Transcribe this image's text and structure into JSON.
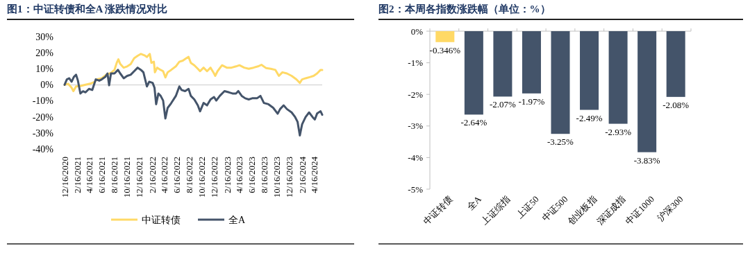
{
  "chart_data": [
    {
      "type": "line",
      "title": "图1：中证转债和全A 涨跌情况对比",
      "legend": "bottom",
      "xlim": [
        "2020-12-16",
        "2024-05-24"
      ],
      "xticks": [
        {
          "value": "2020-12-16",
          "label": "12/16/2020"
        },
        {
          "value": "2021-02-16",
          "label": "2/16/2021"
        },
        {
          "value": "2021-04-16",
          "label": "4/16/2021"
        },
        {
          "value": "2021-06-16",
          "label": "6/16/2021"
        },
        {
          "value": "2021-08-16",
          "label": "8/16/2021"
        },
        {
          "value": "2021-10-16",
          "label": "10/16/2021"
        },
        {
          "value": "2021-12-16",
          "label": "12/16/2021"
        },
        {
          "value": "2022-02-16",
          "label": "2/16/2022"
        },
        {
          "value": "2022-04-16",
          "label": "4/16/2022"
        },
        {
          "value": "2022-06-16",
          "label": "6/16/2022"
        },
        {
          "value": "2022-08-16",
          "label": "8/16/2022"
        },
        {
          "value": "2022-10-16",
          "label": "10/16/2022"
        },
        {
          "value": "2022-12-16",
          "label": "12/16/2022"
        },
        {
          "value": "2023-02-16",
          "label": "2/16/2023"
        },
        {
          "value": "2023-04-16",
          "label": "4/16/2023"
        },
        {
          "value": "2023-06-16",
          "label": "6/16/2023"
        },
        {
          "value": "2023-08-16",
          "label": "8/16/2023"
        },
        {
          "value": "2023-10-16",
          "label": "10/16/2023"
        },
        {
          "value": "2023-12-16",
          "label": "12/16/2023"
        },
        {
          "value": "2024-02-16",
          "label": "2/16/2024"
        },
        {
          "value": "2024-04-16",
          "label": "4/16/2024"
        }
      ],
      "ylim": [
        -40,
        30
      ],
      "yticks": [
        {
          "value": -40,
          "label": "-40%"
        },
        {
          "value": -30,
          "label": "-30%"
        },
        {
          "value": -20,
          "label": "-20%"
        },
        {
          "value": -10,
          "label": "-10%"
        },
        {
          "value": 0,
          "label": "0%"
        },
        {
          "value": 10,
          "label": "10%"
        },
        {
          "value": 20,
          "label": "20%"
        },
        {
          "value": 30,
          "label": "30%"
        }
      ],
      "series": [
        {
          "name": "中证转债",
          "color": "#ffd966",
          "x": [
            "2020-12-16",
            "2021-01-02",
            "2021-01-19",
            "2021-01-28",
            "2021-02-10",
            "2021-03-05",
            "2021-03-28",
            "2021-04-19",
            "2021-05-12",
            "2021-05-23",
            "2021-06-15",
            "2021-07-07",
            "2021-07-30",
            "2021-08-16",
            "2021-08-27",
            "2021-09-04",
            "2021-09-13",
            "2021-09-30",
            "2021-10-17",
            "2021-11-03",
            "2021-11-20",
            "2021-12-07",
            "2021-12-23",
            "2022-01-09",
            "2022-01-21",
            "2022-02-04",
            "2022-02-12",
            "2022-02-24",
            "2022-03-01",
            "2022-03-12",
            "2022-03-29",
            "2022-04-10",
            "2022-04-21",
            "2022-05-02",
            "2022-05-19",
            "2022-06-11",
            "2022-06-28",
            "2022-07-15",
            "2022-08-01",
            "2022-08-12",
            "2022-08-23",
            "2022-09-09",
            "2022-09-26",
            "2022-10-07",
            "2022-10-24",
            "2022-11-10",
            "2022-11-27",
            "2022-12-14",
            "2022-12-20",
            "2022-12-31",
            "2023-01-22",
            "2023-02-14",
            "2023-03-09",
            "2023-03-31",
            "2023-04-17",
            "2023-05-10",
            "2023-06-01",
            "2023-06-24",
            "2023-07-16",
            "2023-08-02",
            "2023-08-25",
            "2023-09-16",
            "2023-10-09",
            "2023-10-26",
            "2023-11-12",
            "2023-12-04",
            "2023-12-27",
            "2024-01-19",
            "2024-02-05",
            "2024-02-16",
            "2024-03-04",
            "2024-03-26",
            "2024-04-12",
            "2024-04-29",
            "2024-05-16",
            "2024-05-24"
          ],
          "values": [
            0,
            0.7,
            -1.8,
            -3.9,
            -1.0,
            -0.7,
            0.1,
            0.7,
            1.9,
            3.4,
            4.1,
            6.3,
            7.5,
            9.3,
            13.7,
            15.9,
            13.0,
            10.7,
            11.5,
            12.9,
            16.6,
            18.1,
            19.3,
            18.4,
            17.4,
            19.3,
            13.7,
            14.4,
            7.8,
            10.7,
            9.3,
            8.5,
            4.6,
            7.8,
            9.3,
            11.5,
            14.4,
            15.1,
            16.6,
            17.4,
            13.7,
            12.2,
            10.0,
            8.5,
            10.7,
            8.5,
            10.7,
            7.1,
            5.6,
            8.5,
            12.2,
            10.7,
            10.7,
            11.5,
            12.2,
            10.7,
            10.0,
            10.7,
            11.5,
            12.5,
            10.4,
            10.0,
            9.3,
            5.6,
            7.8,
            7.1,
            5.6,
            3.4,
            1.2,
            3.4,
            4.1,
            4.9,
            5.6,
            7.1,
            9.3,
            9.3
          ]
        },
        {
          "name": "全A",
          "color": "#44546a",
          "x": [
            "2020-12-16",
            "2020-12-27",
            "2021-01-08",
            "2021-01-19",
            "2021-01-30",
            "2021-02-10",
            "2021-02-19",
            "2021-03-03",
            "2021-03-16",
            "2021-03-28",
            "2021-04-14",
            "2021-04-30",
            "2021-05-17",
            "2021-06-03",
            "2021-06-15",
            "2021-07-02",
            "2021-07-13",
            "2021-07-21",
            "2021-07-30",
            "2021-08-16",
            "2021-09-02",
            "2021-09-13",
            "2021-09-30",
            "2021-10-17",
            "2021-11-03",
            "2021-11-20",
            "2021-12-07",
            "2021-12-23",
            "2022-01-04",
            "2022-01-21",
            "2022-02-01",
            "2022-02-18",
            "2022-02-27",
            "2022-03-07",
            "2022-03-18",
            "2022-03-29",
            "2022-04-10",
            "2022-04-21",
            "2022-05-02",
            "2022-05-19",
            "2022-06-11",
            "2022-06-28",
            "2022-07-09",
            "2022-07-26",
            "2022-08-12",
            "2022-08-23",
            "2022-09-09",
            "2022-09-26",
            "2022-10-07",
            "2022-10-24",
            "2022-11-10",
            "2022-11-27",
            "2022-12-14",
            "2022-12-25",
            "2023-01-11",
            "2023-02-03",
            "2023-02-25",
            "2023-03-14",
            "2023-03-31",
            "2023-04-11",
            "2023-04-28",
            "2023-05-15",
            "2023-06-01",
            "2023-06-18",
            "2023-07-11",
            "2023-07-28",
            "2023-08-14",
            "2023-09-05",
            "2023-09-28",
            "2023-10-20",
            "2023-11-01",
            "2023-11-18",
            "2023-12-04",
            "2023-12-27",
            "2024-01-13",
            "2024-01-25",
            "2024-02-05",
            "2024-02-16",
            "2024-03-04",
            "2024-03-21",
            "2024-04-07",
            "2024-04-18",
            "2024-04-29",
            "2024-05-16",
            "2024-05-24"
          ],
          "values": [
            0,
            3.4,
            4.1,
            1.9,
            4.9,
            6.3,
            2.6,
            -5.4,
            -4.0,
            -4.7,
            -2.5,
            -3.2,
            3.4,
            2.6,
            3.4,
            4.9,
            7.1,
            -0.3,
            7.1,
            7.1,
            9.3,
            7.1,
            4.1,
            5.6,
            6.3,
            8.5,
            10.7,
            9.3,
            7.8,
            -1.0,
            1.9,
            1.2,
            -1.8,
            -12.1,
            -5.4,
            -6.9,
            -9.8,
            -21.0,
            -14.4,
            -11.5,
            -6.9,
            -1.0,
            -3.2,
            -3.9,
            -2.5,
            -6.9,
            -9.1,
            -12.8,
            -16.5,
            -11.3,
            -12.8,
            -9.1,
            -7.6,
            -9.8,
            -6.9,
            -3.9,
            -4.7,
            -5.4,
            -5.4,
            -3.9,
            -6.9,
            -8.4,
            -9.1,
            -8.4,
            -8.4,
            -6.9,
            -11.3,
            -12.1,
            -14.3,
            -18.0,
            -15.1,
            -12.8,
            -15.1,
            -17.2,
            -20.1,
            -23.1,
            -31.6,
            -24.6,
            -20.1,
            -17.2,
            -20.1,
            -21.6,
            -17.9,
            -16.5,
            -18.7
          ]
        }
      ]
    },
    {
      "type": "bar",
      "title": "图2：本周各指数涨跌幅（单位：%）",
      "categories": [
        "中证转债",
        "全A",
        "上证综指",
        "上证50",
        "中证500",
        "创业板指",
        "深证成指",
        "中证1000",
        "沪深300"
      ],
      "values": [
        -0.346,
        -2.64,
        -2.07,
        -1.97,
        -3.25,
        -2.49,
        -2.93,
        -3.83,
        -2.08
      ],
      "colors": [
        "#ffd966",
        "#44546a",
        "#44546a",
        "#44546a",
        "#44546a",
        "#44546a",
        "#44546a",
        "#44546a",
        "#44546a"
      ],
      "value_labels": [
        "-0.346%",
        "-2.64%",
        "-2.07%",
        "-1.97%",
        "-3.25%",
        "-2.49%",
        "-2.93%",
        "-3.83%",
        "-2.08%"
      ],
      "ylim": [
        -5,
        0
      ],
      "yticks": [
        {
          "value": -5,
          "label": "-5%"
        },
        {
          "value": -4,
          "label": "-4%"
        },
        {
          "value": -3,
          "label": "-3%"
        },
        {
          "value": -2,
          "label": "-2%"
        },
        {
          "value": -1,
          "label": "-1%"
        },
        {
          "value": 0,
          "label": "0%"
        }
      ]
    }
  ]
}
